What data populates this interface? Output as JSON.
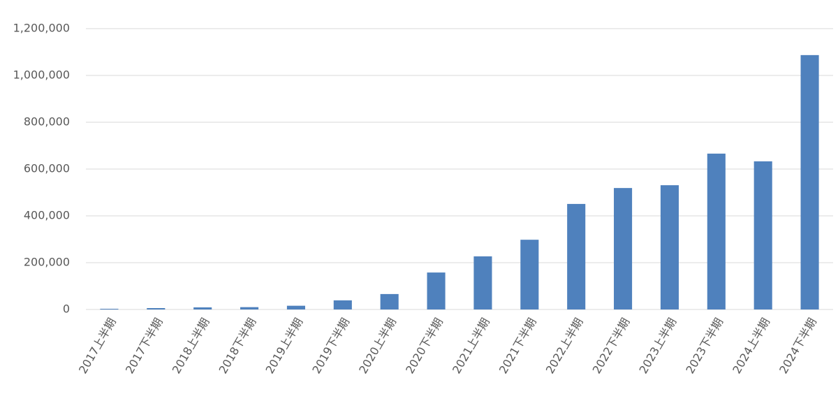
{
  "chart_data": {
    "type": "bar",
    "categories": [
      "2017上半期",
      "2017下半期",
      "2018上半期",
      "2018下半期",
      "2019上半期",
      "2019下半期",
      "2020上半期",
      "2020下半期",
      "2021上半期",
      "2021下半期",
      "2022上半期",
      "2022下半期",
      "2023上半期",
      "2023下半期",
      "2024上半期",
      "2024下半期"
    ],
    "values": [
      3000,
      6000,
      9000,
      10000,
      16000,
      39000,
      66000,
      158000,
      227000,
      298000,
      451000,
      519000,
      531000,
      666000,
      633000,
      1087000
    ],
    "color": "#4f81bd",
    "ylim": [
      0,
      1200000
    ],
    "yticks": [
      0,
      {
        "value": 200000,
        "label": "200,000"
      },
      {
        "value": 400000,
        "label": "400,000"
      },
      {
        "value": 600000,
        "label": "600,000"
      },
      {
        "value": 800000,
        "label": "800,000"
      },
      {
        "value": 1000000,
        "label": "1,000,000"
      },
      {
        "value": 1200000,
        "label": "1,200,000"
      }
    ],
    "grid": true
  }
}
